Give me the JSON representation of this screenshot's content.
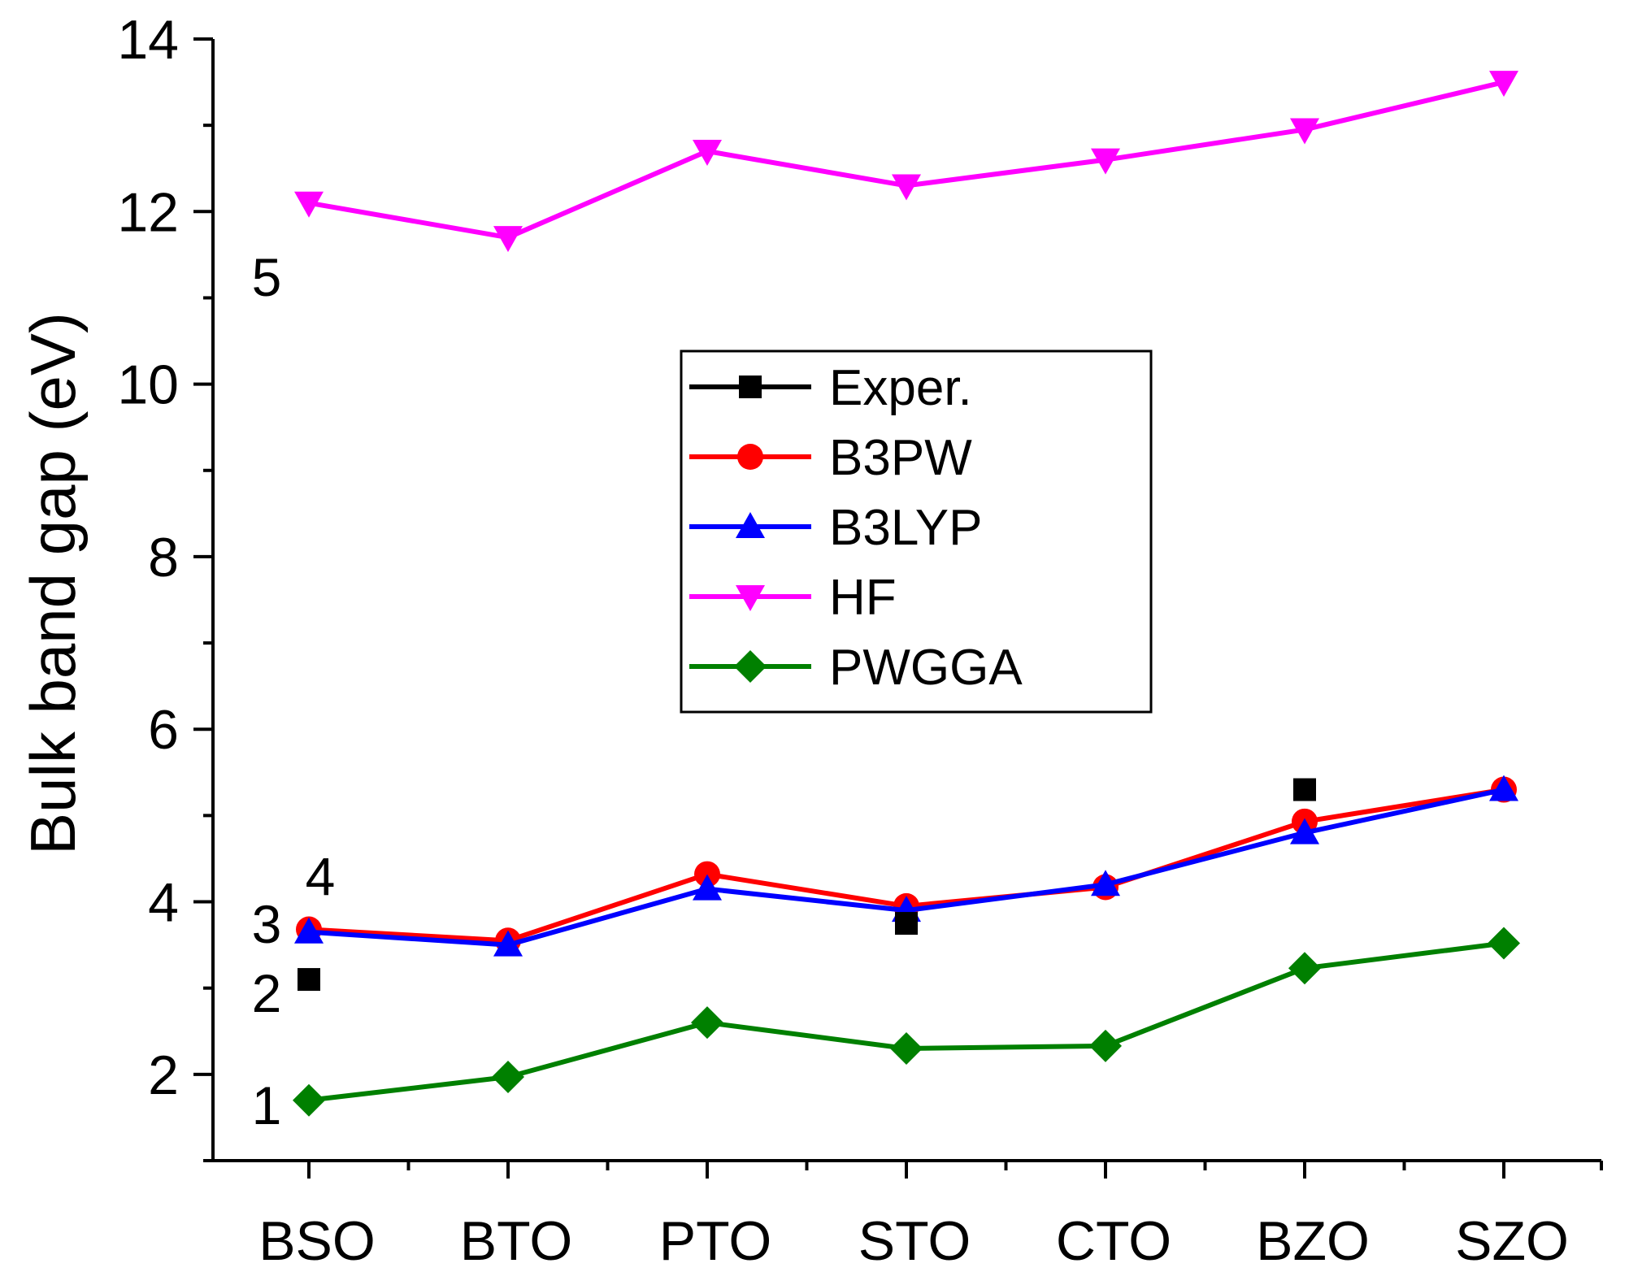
{
  "chart_data": {
    "type": "line",
    "title": "",
    "xlabel": "",
    "ylabel": "Bulk band gap (eV)",
    "categories": [
      "BSO",
      "BTO",
      "PTO",
      "STO",
      "CTO",
      "BZO",
      "SZO"
    ],
    "ylim": [
      1,
      14
    ],
    "yticks": [
      2,
      4,
      6,
      8,
      10,
      12,
      14
    ],
    "grid": false,
    "legend_position": "center-right",
    "series": [
      {
        "name": "Exper.",
        "color": "#000000",
        "marker": "square",
        "line": false,
        "values": [
          3.1,
          null,
          null,
          3.75,
          null,
          5.3,
          null
        ]
      },
      {
        "name": "B3PW",
        "color": "#ff0000",
        "marker": "circle",
        "line": true,
        "values": [
          3.68,
          3.55,
          4.32,
          3.95,
          4.17,
          4.93,
          5.3
        ]
      },
      {
        "name": "B3LYP",
        "color": "#0000ff",
        "marker": "triangle-up",
        "line": true,
        "values": [
          3.65,
          3.5,
          4.15,
          3.9,
          4.2,
          4.8,
          5.3
        ]
      },
      {
        "name": "HF",
        "color": "#ff00ff",
        "marker": "triangle-down",
        "line": true,
        "values": [
          12.1,
          11.7,
          12.7,
          12.3,
          12.6,
          12.95,
          13.5
        ]
      },
      {
        "name": "PWGGA",
        "color": "#008000",
        "marker": "diamond",
        "line": true,
        "values": [
          1.7,
          1.97,
          2.6,
          2.3,
          2.33,
          3.23,
          3.52
        ]
      }
    ],
    "annotations": [
      {
        "text": "1",
        "x_category": "BSO",
        "y": 1.65
      },
      {
        "text": "2",
        "x_category": "BSO",
        "y": 2.95
      },
      {
        "text": "3",
        "x_category": "BSO",
        "y": 3.75
      },
      {
        "text": "4",
        "x_category": "BSO",
        "y": 4.3
      },
      {
        "text": "5",
        "x_category": "BSO",
        "y": 11.25
      }
    ]
  }
}
